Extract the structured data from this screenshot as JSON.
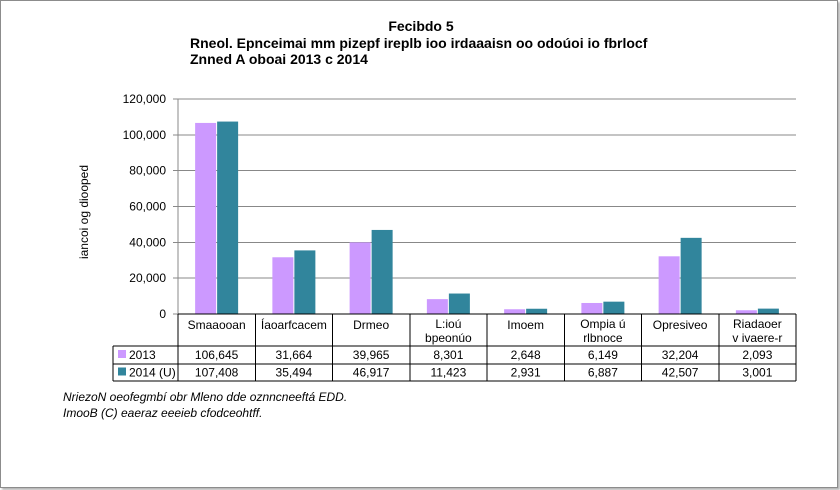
{
  "chart_data": {
    "type": "bar",
    "title": "Fecibdo 5",
    "subtitle_lines": [
      "Rneol. Epnceimai mm pizepf ireplb ioo irdaaaisn oo odoúoi io fbrlocf",
      "Znned A oboai 2013 c 2014"
    ],
    "ylabel": "iancoi og diooped",
    "xlabel": "",
    "ylim": [
      0,
      120000
    ],
    "yticks": [
      "0",
      "20,000",
      "40,000",
      "60,000",
      "80,000",
      "100,000",
      "120,000"
    ],
    "ytick_values": [
      0,
      20000,
      40000,
      60000,
      80000,
      100000,
      120000
    ],
    "grid": true,
    "legend_placement": "data-table",
    "categories": [
      "Smaaooan",
      "Íaoarfcacem",
      "Drmeo",
      "L:ioú bpeonúo",
      "Imoem",
      "Ompia ú rlbnoce",
      "Opresiveo",
      "Riadaoer v ivaere-r"
    ],
    "series": [
      {
        "name": "2013",
        "color": "#cc99ff",
        "values": [
          106645,
          31664,
          39965,
          8301,
          2648,
          6149,
          32204,
          2093
        ],
        "labels": [
          "106,645",
          "31,664",
          "39,965",
          "8,301",
          "2,648",
          "6,149",
          "32,204",
          "2,093"
        ]
      },
      {
        "name": "2014 (U)",
        "color": "#31859c",
        "values": [
          107408,
          35494,
          46917,
          11423,
          2931,
          6887,
          42507,
          3001
        ],
        "labels": [
          "107,408",
          "35,494",
          "46,917",
          "11,423",
          "2,931",
          "6,887",
          "42,507",
          "3,001"
        ]
      }
    ]
  },
  "footer": {
    "line1": "NriezoN oeofegmbí obr Mleno dde oznncneeftá EDD.",
    "line2": "ImooB (C) eaeraz eeeieb cfodceohtff."
  }
}
